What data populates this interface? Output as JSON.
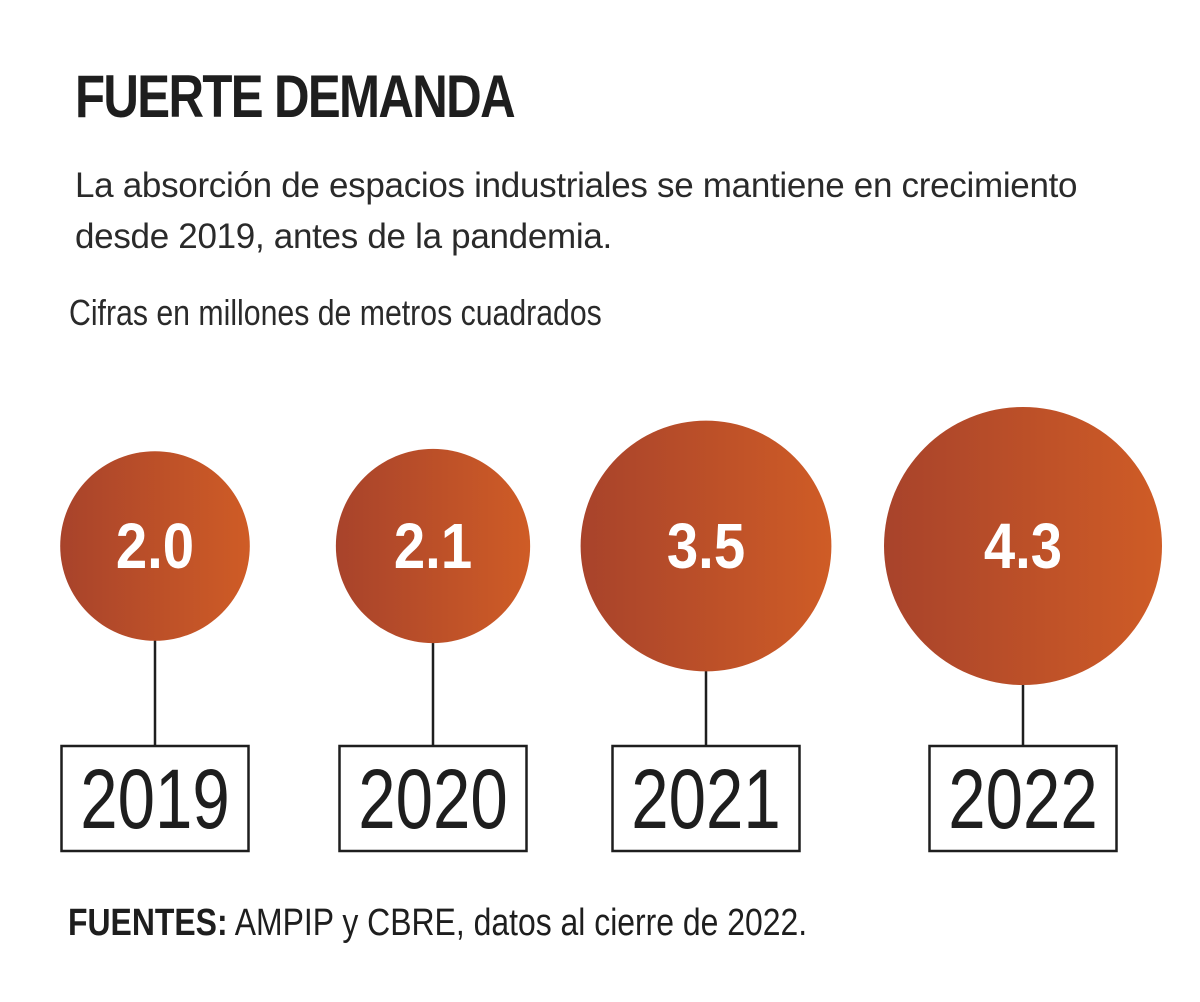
{
  "header": {
    "title": "FUERTE DEMANDA",
    "subtitle": "La absorción de espacios industriales se mantiene en crecimiento desde 2019, antes de la pandemia.",
    "units_note": "Cifras en millones de metros cuadrados"
  },
  "chart_data": {
    "type": "bubble",
    "categories": [
      "2019",
      "2020",
      "2021",
      "2022"
    ],
    "values": [
      2.0,
      2.1,
      3.5,
      4.3
    ],
    "value_labels": [
      "2.0",
      "2.1",
      "3.5",
      "4.3"
    ],
    "colors": {
      "bubble_start": "#a8432b",
      "bubble_end": "#cf5c26",
      "bubble_text": "#ffffff",
      "line": "#1e1e1e",
      "box_border": "#1e1e1e"
    }
  },
  "footer": {
    "source_lead": "FUENTES:",
    "source_text": " AMPIP y CBRE, datos al cierre de 2022."
  }
}
